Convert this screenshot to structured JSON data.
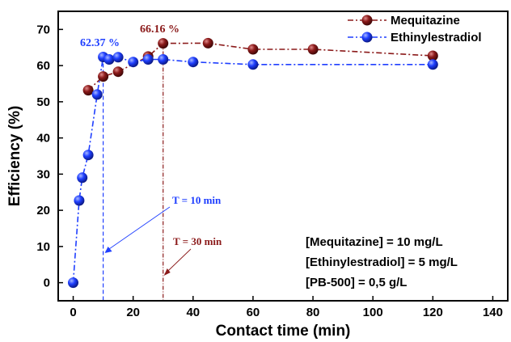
{
  "chart_data": {
    "type": "line",
    "title": "",
    "xlabel": "Contact time (min)",
    "ylabel": "Efficiency (%)",
    "xlim": [
      -5,
      145
    ],
    "ylim": [
      -5,
      75
    ],
    "x_ticks": [
      0,
      20,
      40,
      60,
      80,
      100,
      120,
      140
    ],
    "y_ticks": [
      0,
      10,
      20,
      30,
      40,
      50,
      60,
      70
    ],
    "legend_position": "top-right",
    "series": [
      {
        "name": "Mequitazine",
        "color": "#8b1a1a",
        "points": [
          {
            "x": 5,
            "y": 53.2
          },
          {
            "x": 10,
            "y": 57.0
          },
          {
            "x": 15,
            "y": 58.3
          },
          {
            "x": 25,
            "y": 62.5
          },
          {
            "x": 30,
            "y": 66.16
          },
          {
            "x": 45,
            "y": 66.2
          },
          {
            "x": 60,
            "y": 64.5
          },
          {
            "x": 80,
            "y": 64.5
          },
          {
            "x": 120,
            "y": 62.7
          }
        ]
      },
      {
        "name": "Ethinylestradiol",
        "color": "#1f3fff",
        "points": [
          {
            "x": 0,
            "y": 0
          },
          {
            "x": 2,
            "y": 22.7
          },
          {
            "x": 3,
            "y": 29.0
          },
          {
            "x": 5,
            "y": 35.3
          },
          {
            "x": 8,
            "y": 52.0
          },
          {
            "x": 10,
            "y": 62.37
          },
          {
            "x": 12,
            "y": 61.7
          },
          {
            "x": 15,
            "y": 62.3
          },
          {
            "x": 20,
            "y": 61.0
          },
          {
            "x": 25,
            "y": 61.7
          },
          {
            "x": 30,
            "y": 61.7
          },
          {
            "x": 40,
            "y": 61.0
          },
          {
            "x": 60,
            "y": 60.3
          },
          {
            "x": 120,
            "y": 60.3
          }
        ]
      }
    ],
    "annotations": {
      "peak_ethinyl": {
        "text": "62.37 %",
        "x": 10,
        "color": "#1f3fff"
      },
      "peak_mequitazine": {
        "text": "66.16 %",
        "x": 30,
        "color": "#8b1a1a"
      },
      "t10": {
        "text": "T = 10 min",
        "x": 10,
        "color": "#1f3fff"
      },
      "t30": {
        "text": "T = 30 min",
        "x": 30,
        "color": "#8b1a1a"
      }
    },
    "conditions": [
      "[Mequitazine] = 10 mg/L",
      "[Ethinylestradiol] = 5 mg/L",
      "[PB-500] = 0,5 g/L"
    ]
  }
}
